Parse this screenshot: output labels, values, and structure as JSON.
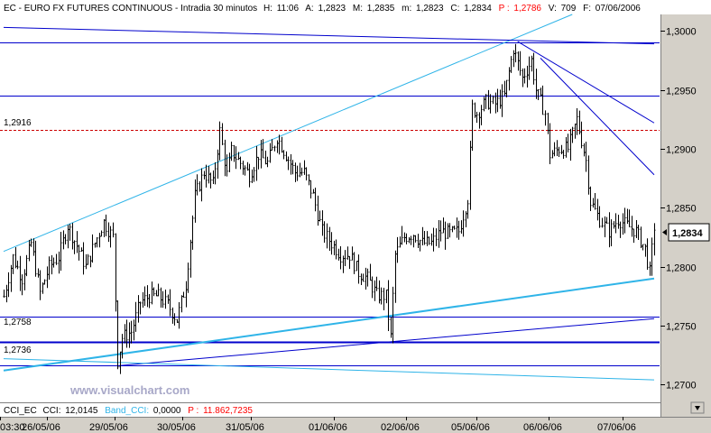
{
  "header": {
    "instrument": "EC - EURO FX FUTURES CONTINUOUS - Intradia 30 minutos",
    "h_label": "H:",
    "h_value": "11:06",
    "a_label": "A:",
    "a_value": "1,2823",
    "mx_label": "M:",
    "mx_value": "1,2835",
    "mn_label": "m:",
    "mn_value": "1,2823",
    "c_label": "C:",
    "c_value": "1,2834",
    "p_label": "P :",
    "p_value": "1,2786",
    "v_label": "V:",
    "v_value": "709",
    "f_label": "F:",
    "f_value": "07/06/2006"
  },
  "level_labels": [
    "1,2916",
    "1,2758",
    "1,2736"
  ],
  "last_price_label": "1,2834",
  "watermark": "www.visualchart.com",
  "indicator": {
    "cci_title": "CCI_EC",
    "cci_label": "CCI:",
    "cci_value": "12,0145",
    "band_label": "Band_CCI:",
    "band_value": "0,0000",
    "p_label": "P :",
    "p_value": "11.862,7235"
  },
  "colors": {
    "background": "#ffffff",
    "price": "#000000",
    "support_resistance": "#0000cc",
    "trendline_light": "#2fb4e8",
    "dotted_level": "#cc0000",
    "axis_panel": "#d4d0c8",
    "header_red": "#ff0000"
  },
  "chart_data": {
    "type": "line",
    "title": "EC - EURO FX FUTURES CONTINUOUS - Intradia 30 minutos",
    "x_tick_labels": [
      "03:30",
      "26/05/06",
      "29/05/06",
      "30/05/06",
      "31/05/06",
      "01/06/06",
      "02/06/06",
      "05/06/06",
      "06/06/06",
      "07/06/06"
    ],
    "y_ticks": [
      1.27,
      1.275,
      1.28,
      1.285,
      1.29,
      1.295,
      1.3
    ],
    "y_tick_labels": [
      "1,2700",
      "1,2750",
      "1,2800",
      "1,2850",
      "1,2900",
      "1,2950",
      "1,3000"
    ],
    "ylim": [
      1.2685,
      1.3014
    ],
    "bar_count": 240,
    "series": [
      {
        "anchors": [
          [
            0,
            1.2775
          ],
          [
            4,
            1.2808
          ],
          [
            8,
            1.279
          ],
          [
            12,
            1.282
          ],
          [
            16,
            1.2778
          ],
          [
            20,
            1.28
          ],
          [
            24,
            1.2808
          ],
          [
            28,
            1.2835
          ],
          [
            32,
            1.2818
          ],
          [
            36,
            1.28
          ],
          [
            40,
            1.282
          ],
          [
            44,
            1.2838
          ],
          [
            48,
            1.2825
          ],
          [
            50,
            1.272
          ],
          [
            52,
            1.274
          ],
          [
            56,
            1.2745
          ],
          [
            60,
            1.277
          ],
          [
            64,
            1.2775
          ],
          [
            68,
            1.2775
          ],
          [
            72,
            1.2768
          ],
          [
            76,
            1.2755
          ],
          [
            80,
            1.2785
          ],
          [
            84,
            1.286
          ],
          [
            88,
            1.288
          ],
          [
            92,
            1.287
          ],
          [
            95,
            1.2915
          ],
          [
            98,
            1.2878
          ],
          [
            100,
            1.2898
          ],
          [
            104,
            1.2888
          ],
          [
            108,
            1.2878
          ],
          [
            112,
            1.2895
          ],
          [
            116,
            1.2888
          ],
          [
            120,
            1.291
          ],
          [
            124,
            1.2895
          ],
          [
            128,
            1.288
          ],
          [
            132,
            1.288
          ],
          [
            136,
            1.286
          ],
          [
            140,
            1.283
          ],
          [
            144,
            1.282
          ],
          [
            148,
            1.281
          ],
          [
            152,
            1.281
          ],
          [
            156,
            1.2795
          ],
          [
            160,
            1.279
          ],
          [
            164,
            1.2776
          ],
          [
            168,
            1.2775
          ],
          [
            170,
            1.274
          ],
          [
            172,
            1.281
          ],
          [
            176,
            1.2825
          ],
          [
            180,
            1.2828
          ],
          [
            184,
            1.282
          ],
          [
            188,
            1.282
          ],
          [
            192,
            1.283
          ],
          [
            196,
            1.2828
          ],
          [
            200,
            1.283
          ],
          [
            204,
            1.2858
          ],
          [
            206,
            1.2935
          ],
          [
            208,
            1.293
          ],
          [
            212,
            1.294
          ],
          [
            216,
            1.2938
          ],
          [
            220,
            1.2945
          ],
          [
            224,
            1.2985
          ],
          [
            228,
            1.296
          ],
          [
            232,
            1.2975
          ],
          [
            234,
            1.295
          ],
          [
            236,
            1.294
          ],
          [
            238,
            1.293
          ],
          [
            240,
            1.2895
          ],
          [
            244,
            1.29
          ],
          [
            248,
            1.29
          ],
          [
            252,
            1.2925
          ],
          [
            256,
            1.289
          ],
          [
            258,
            1.2855
          ],
          [
            262,
            1.284
          ],
          [
            266,
            1.283
          ],
          [
            270,
            1.284
          ],
          [
            274,
            1.2835
          ],
          [
            278,
            1.283
          ],
          [
            282,
            1.2815
          ],
          [
            284,
            1.2795
          ],
          [
            286,
            1.2834
          ]
        ]
      }
    ],
    "horizontal_levels": [
      1.299,
      1.2945,
      1.2916,
      1.2758,
      1.2736,
      1.2716
    ],
    "trendlines": [
      {
        "from": [
          0,
          1.2813
        ],
        "to": [
          250,
          1.3014
        ]
      },
      {
        "from": [
          0,
          1.2712
        ],
        "to": [
          286,
          1.279
        ]
      },
      {
        "from": [
          0,
          1.3003
        ],
        "to": [
          286,
          1.2989
        ]
      },
      {
        "from": [
          50,
          1.2716
        ],
        "to": [
          286,
          1.2756
        ]
      },
      {
        "from": [
          226,
          1.2991
        ],
        "to": [
          286,
          1.2922
        ]
      },
      {
        "from": [
          236,
          1.2977
        ],
        "to": [
          286,
          1.2878
        ]
      },
      {
        "from": [
          0,
          1.2722
        ],
        "to": [
          286,
          1.2704
        ]
      }
    ]
  }
}
